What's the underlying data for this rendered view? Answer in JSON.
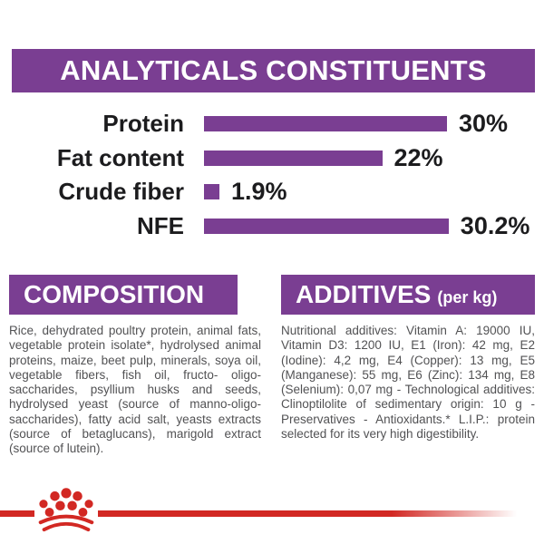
{
  "header": {
    "title": "ANALYTICALS CONSTITUENTS"
  },
  "chart_data": {
    "type": "bar",
    "orientation": "horizontal",
    "title": "ANALYTICALS CONSTITUENTS",
    "categories": [
      "Protein",
      "Fat content",
      "Crude fiber",
      "NFE"
    ],
    "values": [
      30,
      22,
      1.9,
      30.2
    ],
    "value_labels": [
      "30%",
      "22%",
      "1.9%",
      "30.2%"
    ],
    "unit": "%",
    "xlim": [
      0,
      30.2
    ],
    "grid": false,
    "bar_color": "#7A3E92"
  },
  "composition": {
    "heading": "COMPOSITION",
    "body": "Rice, dehydrated poultry protein, animal fats, vegetable protein isolate*, hydrolysed animal proteins, maize, beet pulp, minerals, soya oil, vegetable fibers, fish oil, fructo- oligo-saccharides, psyllium husks and seeds, hydrolysed yeast (source of manno-oligo-saccharides), fatty acid salt, yeasts extracts (source of betaglucans), marigold extract (source of lutein)."
  },
  "additives": {
    "heading": "ADDITIVES",
    "heading_suffix": "(per kg)",
    "body": "Nutritional additives: Vitamin A: 19000 IU, Vitamin D3: 1200 IU, E1 (Iron): 42 mg, E2 (Iodine): 4,2 mg, E4 (Copper): 13 mg, E5 (Manganese): 55 mg, E6 (Zinc): 134 mg, E8 (Selenium): 0,07 mg - Technological additives: Clinoptilolite of sedimentary origin: 10 g - Preservatives - Antioxidants.* L.I.P.: protein selected for its very high digestibility."
  },
  "footer": {
    "brand_icon": "royal-canin-crown"
  },
  "colors": {
    "purple": "#7A3E92",
    "red": "#D22823",
    "heading_text": "#FFFFFF",
    "chart_text": "#1C1C1E",
    "body_text": "#525254"
  }
}
